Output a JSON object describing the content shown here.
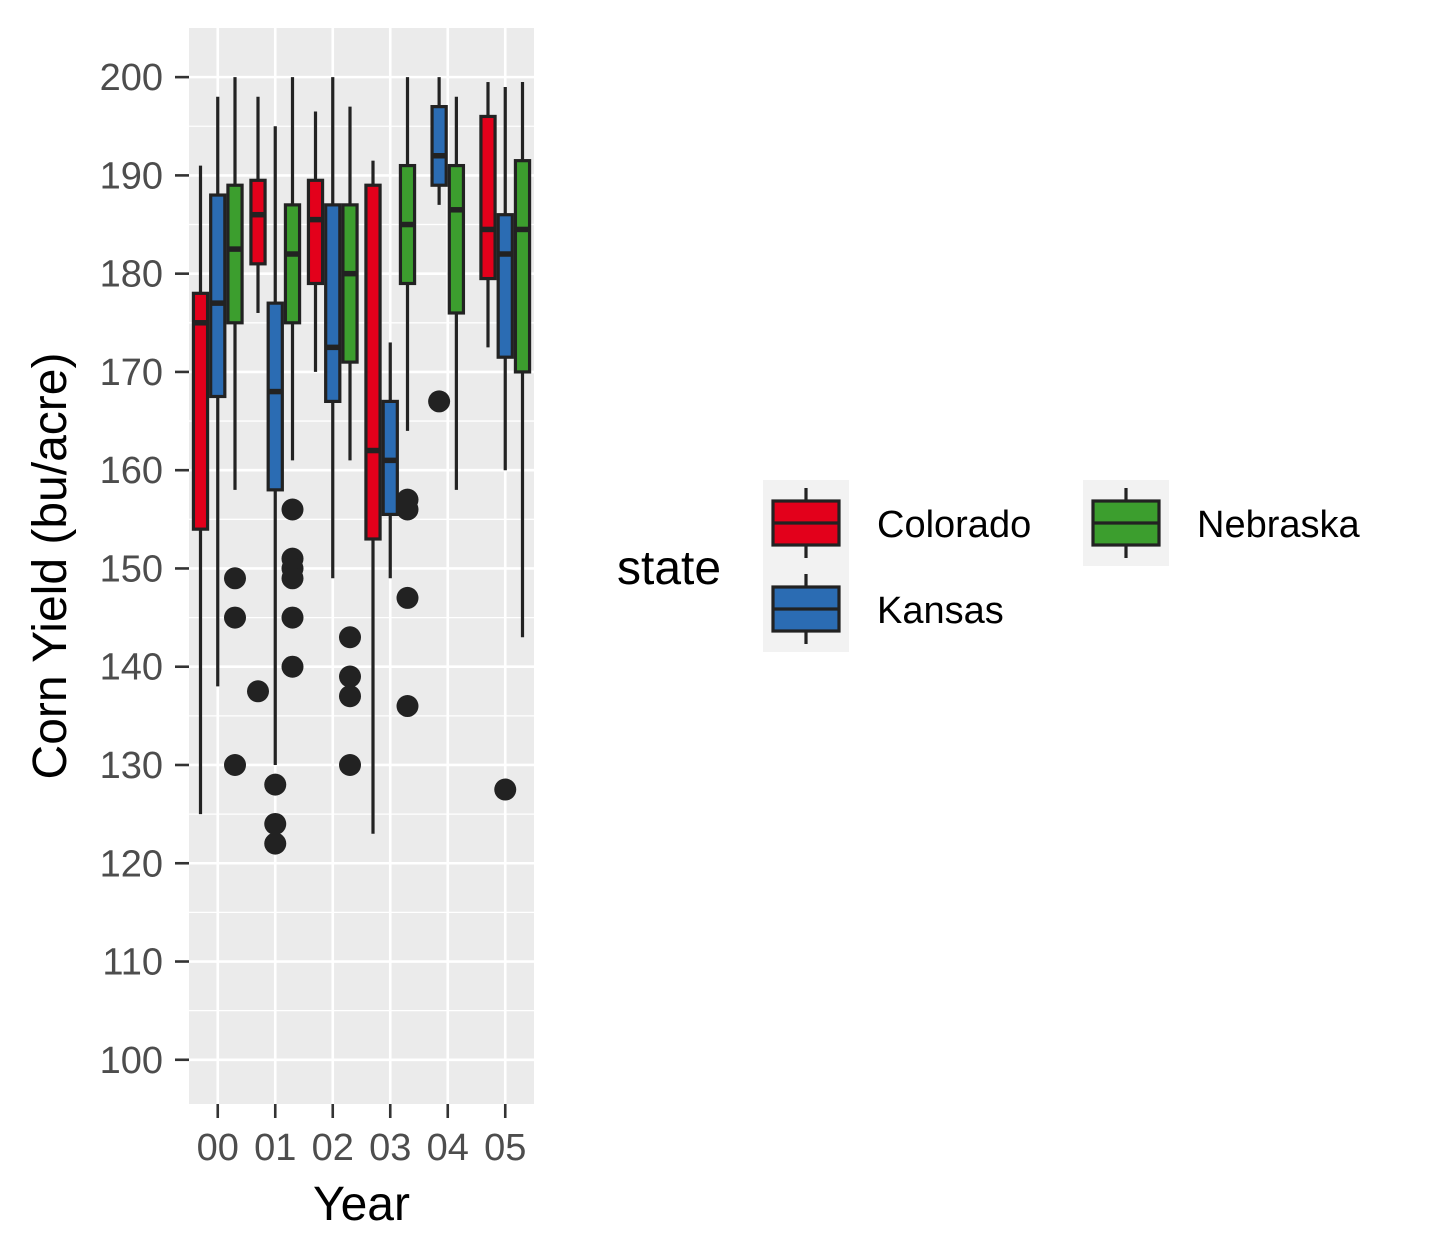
{
  "chart_data": {
    "type": "boxplot",
    "title": "",
    "xlabel": "Year",
    "ylabel": "Corn Yield (bu/acre)",
    "ylim": [
      95.5,
      205
    ],
    "yticks": [
      100,
      110,
      120,
      130,
      140,
      150,
      160,
      170,
      180,
      190,
      200
    ],
    "categories": [
      "00",
      "01",
      "02",
      "03",
      "04",
      "05"
    ],
    "grid": true,
    "legend": {
      "title": "state",
      "placement": "right"
    },
    "series": [
      {
        "name": "Colorado",
        "color": "#e3001b",
        "boxes": [
          {
            "category": "00",
            "whisker_low": 125,
            "q1": 154,
            "median": 175,
            "q3": 178,
            "whisker_high": 191,
            "outliers": []
          },
          {
            "category": "01",
            "whisker_low": 176,
            "q1": 181,
            "median": 186,
            "q3": 189.5,
            "whisker_high": 198,
            "outliers": [
              137.5
            ]
          },
          {
            "category": "02",
            "whisker_low": 170,
            "q1": 179,
            "median": 185.5,
            "q3": 189.5,
            "whisker_high": 196.5,
            "outliers": []
          },
          {
            "category": "03",
            "whisker_low": 123,
            "q1": 153,
            "median": 162,
            "q3": 189,
            "whisker_high": 191.5,
            "outliers": []
          },
          {
            "category": "05",
            "whisker_low": 172.5,
            "q1": 179.5,
            "median": 184.5,
            "q3": 196,
            "whisker_high": 199.5,
            "outliers": []
          }
        ]
      },
      {
        "name": "Kansas",
        "color": "#2b6cb3",
        "boxes": [
          {
            "category": "00",
            "whisker_low": 138,
            "q1": 167.5,
            "median": 177,
            "q3": 188,
            "whisker_high": 198,
            "outliers": []
          },
          {
            "category": "01",
            "whisker_low": 130,
            "q1": 158,
            "median": 168,
            "q3": 177,
            "whisker_high": 195,
            "outliers": [
              128,
              124,
              122
            ]
          },
          {
            "category": "02",
            "whisker_low": 149,
            "q1": 167,
            "median": 172.5,
            "q3": 187,
            "whisker_high": 200,
            "outliers": []
          },
          {
            "category": "03",
            "whisker_low": 149,
            "q1": 155.5,
            "median": 161,
            "q3": 167,
            "whisker_high": 173,
            "outliers": []
          },
          {
            "category": "04",
            "whisker_low": 187,
            "q1": 189,
            "median": 192,
            "q3": 197,
            "whisker_high": 200,
            "outliers": [
              167
            ]
          },
          {
            "category": "05",
            "whisker_low": 160,
            "q1": 171.5,
            "median": 182,
            "q3": 186,
            "whisker_high": 199,
            "outliers": [
              127.5
            ]
          }
        ]
      },
      {
        "name": "Nebraska",
        "color": "#3c9e2e",
        "boxes": [
          {
            "category": "00",
            "whisker_low": 158,
            "q1": 175,
            "median": 182.5,
            "q3": 189,
            "whisker_high": 200,
            "outliers": [
              149,
              145,
              130
            ]
          },
          {
            "category": "01",
            "whisker_low": 161,
            "q1": 175,
            "median": 182,
            "q3": 187,
            "whisker_high": 200,
            "outliers": [
              156,
              151,
              150,
              149,
              145,
              140
            ]
          },
          {
            "category": "02",
            "whisker_low": 161,
            "q1": 171,
            "median": 180,
            "q3": 187,
            "whisker_high": 197,
            "outliers": [
              143,
              139,
              137,
              130
            ]
          },
          {
            "category": "03",
            "whisker_low": 164,
            "q1": 179,
            "median": 185,
            "q3": 191,
            "whisker_high": 200,
            "outliers": [
              157,
              156,
              147,
              136
            ]
          },
          {
            "category": "04",
            "whisker_low": 158,
            "q1": 176,
            "median": 186.5,
            "q3": 191,
            "whisker_high": 198,
            "outliers": []
          },
          {
            "category": "05",
            "whisker_low": 143,
            "q1": 170,
            "median": 184.5,
            "q3": 191.5,
            "whisker_high": 199.5,
            "outliers": []
          }
        ]
      }
    ]
  }
}
